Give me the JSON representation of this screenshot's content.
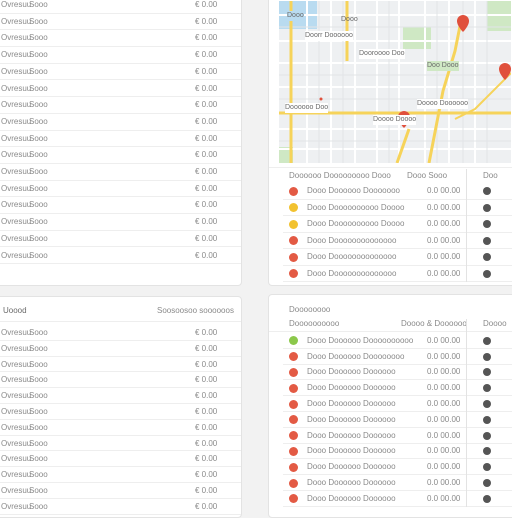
{
  "left_top": {
    "rows": [
      {
        "name": "Ovresuu",
        "col2": "Sooo",
        "amount": "€ 0.00"
      },
      {
        "name": "Ovresuu",
        "col2": "Sooo",
        "amount": "€ 0.00"
      },
      {
        "name": "Ovresuu",
        "col2": "Sooo",
        "amount": "€ 0.00"
      },
      {
        "name": "Ovresuu",
        "col2": "Sooo",
        "amount": "€ 0.00"
      },
      {
        "name": "Ovresuu",
        "col2": "Sooo",
        "amount": "€ 0.00"
      },
      {
        "name": "Ovresuu",
        "col2": "Sooo",
        "amount": "€ 0.00"
      },
      {
        "name": "Ovresuu",
        "col2": "Sooo",
        "amount": "€ 0.00"
      },
      {
        "name": "Ovresuu",
        "col2": "Sooo",
        "amount": "€ 0.00"
      },
      {
        "name": "Ovresuu",
        "col2": "Sooo",
        "amount": "€ 0.00"
      },
      {
        "name": "Ovresuu",
        "col2": "Sooo",
        "amount": "€ 0.00"
      },
      {
        "name": "Ovresuu",
        "col2": "Sooo",
        "amount": "€ 0.00"
      },
      {
        "name": "Ovresuu",
        "col2": "Sooo",
        "amount": "€ 0.00"
      },
      {
        "name": "Ovresuu",
        "col2": "Sooo",
        "amount": "€ 0.00"
      },
      {
        "name": "Ovresuu",
        "col2": "Sooo",
        "amount": "€ 0.00"
      },
      {
        "name": "Ovresuu",
        "col2": "Sooo",
        "amount": "€ 0.00"
      },
      {
        "name": "Ovresuu",
        "col2": "Sooo",
        "amount": "€ 0.00"
      }
    ]
  },
  "left_bottom": {
    "title": "Uoood",
    "header_right": "Soosoosoo soooooos",
    "rows": [
      {
        "name": "Ovresuu",
        "col2": "Sooo",
        "amount": "€ 0.00"
      },
      {
        "name": "Ovresuu",
        "col2": "Sooo",
        "amount": "€ 0.00"
      },
      {
        "name": "Ovresuu",
        "col2": "Sooo",
        "amount": "€ 0.00"
      },
      {
        "name": "Ovresuu",
        "col2": "Sooo",
        "amount": "€ 0.00"
      },
      {
        "name": "Ovresuu",
        "col2": "Sooo",
        "amount": "€ 0.00"
      },
      {
        "name": "Ovresuu",
        "col2": "Sooo",
        "amount": "€ 0.00"
      },
      {
        "name": "Ovresuu",
        "col2": "Sooo",
        "amount": "€ 0.00"
      },
      {
        "name": "Ovresuu",
        "col2": "Sooo",
        "amount": "€ 0.00"
      },
      {
        "name": "Ovresuu",
        "col2": "Sooo",
        "amount": "€ 0.00"
      },
      {
        "name": "Ovresuu",
        "col2": "Sooo",
        "amount": "€ 0.00"
      },
      {
        "name": "Ovresuu",
        "col2": "Sooo",
        "amount": "€ 0.00"
      },
      {
        "name": "Ovresuu",
        "col2": "Sooo",
        "amount": "€ 0.00"
      },
      {
        "name": "Ovresuu",
        "col2": "Sooo",
        "amount": "€ 0.00"
      }
    ]
  },
  "map": {
    "labels": [
      "Dooo",
      "Dooo",
      "Doorr Doooooo",
      "Dooroooo Doo",
      "Doo Dooo",
      "Doooooo Doo",
      "Doooo Doooooo",
      "Doooo Doooo"
    ],
    "colors": {
      "water": "#b9dbf0",
      "park": "#cfe8c4",
      "major_road": "#f6d35a",
      "pin": "#e0503c",
      "street": "#ffffff"
    }
  },
  "right_top": {
    "header_left": "Doooooo Dooooooooo Dooo",
    "header_mid": "Dooo Sooo",
    "header_right": "Doo",
    "rows": [
      {
        "status": "red",
        "label": "Dooo Doooooo Dooooooo",
        "value": "0.0 00.00"
      },
      {
        "status": "yellow",
        "label": "Dooo Doooooooooo Doooo",
        "value": "0.0 00.00"
      },
      {
        "status": "yellow",
        "label": "Dooo Doooooooooo Doooo",
        "value": "0.0 00.00"
      },
      {
        "status": "red",
        "label": "Dooo Doooooooooooooo",
        "value": "0.0 00.00"
      },
      {
        "status": "red",
        "label": "Dooo Doooooooooooooo",
        "value": "0.0 00.00"
      },
      {
        "status": "red",
        "label": "Dooo Doooooooooooooo",
        "value": "0.0 00.00"
      }
    ]
  },
  "right_bottom": {
    "title": "Doooooooo",
    "header_left": "Doooooooooo",
    "header_mid": "Doooo & Doooooo",
    "header_right": "Doooo",
    "rows": [
      {
        "status": "green",
        "label": "Dooo Doooooo Doooooooooo",
        "value": "0.0 00.00"
      },
      {
        "status": "red",
        "label": "Dooo Doooooo Doooooooo",
        "value": "0.0 00.00"
      },
      {
        "status": "red",
        "label": "Dooo Doooooo Doooooo",
        "value": "0.0 00.00"
      },
      {
        "status": "red",
        "label": "Dooo Doooooo Doooooo",
        "value": "0.0 00.00"
      },
      {
        "status": "red",
        "label": "Dooo Doooooo Doooooo",
        "value": "0.0 00.00"
      },
      {
        "status": "red",
        "label": "Dooo Doooooo Doooooo",
        "value": "0.0 00.00"
      },
      {
        "status": "red",
        "label": "Dooo Doooooo Doooooo",
        "value": "0.0 00.00"
      },
      {
        "status": "red",
        "label": "Dooo Doooooo Doooooo",
        "value": "0.0 00.00"
      },
      {
        "status": "red",
        "label": "Dooo Doooooo Doooooo",
        "value": "0.0 00.00"
      },
      {
        "status": "red",
        "label": "Dooo Doooooo Doooooo",
        "value": "0.0 00.00"
      },
      {
        "status": "red",
        "label": "Dooo Doooooo Doooooo",
        "value": "0.0 00.00"
      }
    ]
  },
  "status_colors": {
    "red": "#e35a44",
    "yellow": "#f2c230",
    "green": "#8cc84b"
  }
}
